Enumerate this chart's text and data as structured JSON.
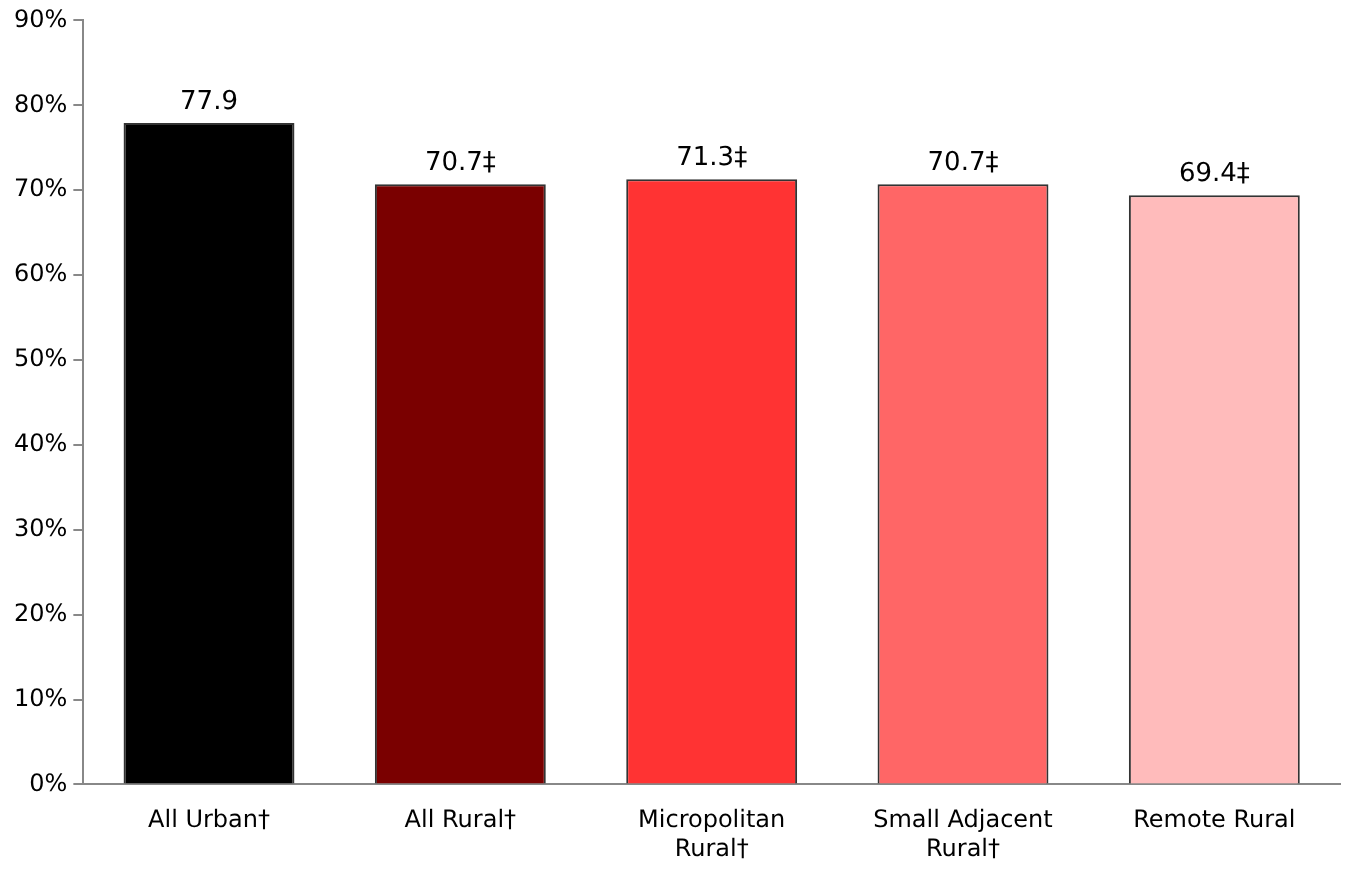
{
  "chart_data": {
    "type": "bar",
    "categories": [
      "All Urban†",
      "All Rural†",
      "Micropolitan Rural†",
      "Small Adjacent Rural†",
      "Remote Rural"
    ],
    "values": [
      77.9,
      70.7,
      71.3,
      70.7,
      69.4
    ],
    "value_labels": [
      "77.9",
      "70.7‡",
      "71.3‡",
      "70.7‡",
      "69.4‡"
    ],
    "colors": [
      "#000000",
      "#7a0000",
      "#ff3333",
      "#ff6666",
      "#ffbbbb"
    ],
    "ylim": [
      0,
      90
    ],
    "yticks": [
      {
        "value": 0,
        "label": "0%"
      },
      {
        "value": 10,
        "label": "10%"
      },
      {
        "value": 20,
        "label": "20%"
      },
      {
        "value": 30,
        "label": "30%"
      },
      {
        "value": 40,
        "label": "40%"
      },
      {
        "value": 50,
        "label": "50%"
      },
      {
        "value": 60,
        "label": "60%"
      },
      {
        "value": 70,
        "label": "70%"
      },
      {
        "value": 80,
        "label": "80%"
      },
      {
        "value": 90,
        "label": "90%"
      }
    ],
    "grid": false,
    "legend": false
  }
}
